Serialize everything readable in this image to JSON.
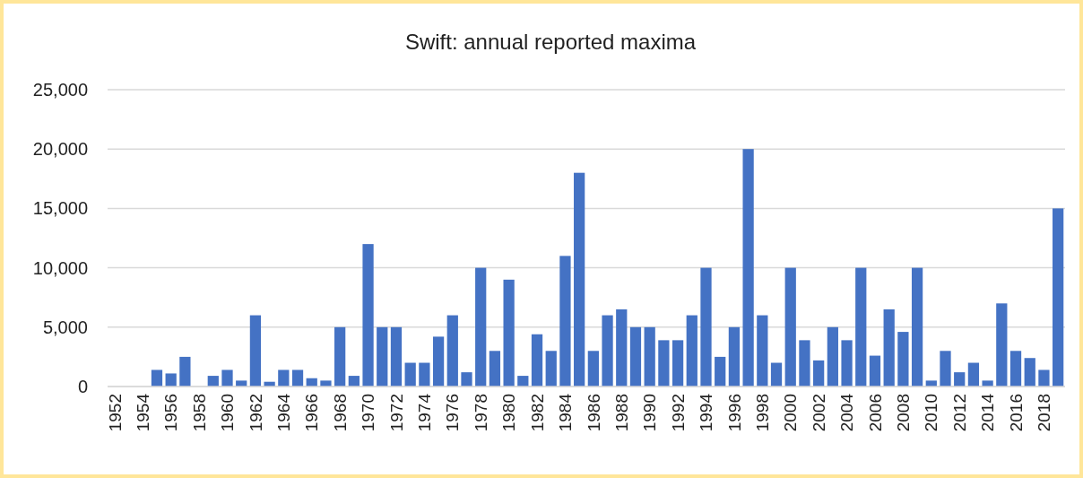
{
  "chart_data": {
    "type": "bar",
    "title": "Swift: annual reported maxima",
    "categories": [
      "1952",
      null,
      "1954",
      null,
      "1956",
      null,
      "1958",
      null,
      "1960",
      null,
      "1962",
      null,
      "1964",
      null,
      "1966",
      null,
      "1968",
      null,
      "1970",
      null,
      "1972",
      null,
      "1974",
      null,
      "1976",
      null,
      "1978",
      null,
      "1980",
      null,
      "1982",
      null,
      "1984",
      null,
      "1986",
      null,
      "1988",
      null,
      "1990",
      null,
      "1992",
      null,
      "1994",
      null,
      "1996",
      null,
      "1998",
      null,
      "2000",
      null,
      "2002",
      null,
      "2004",
      null,
      "2006",
      null,
      "2008",
      null,
      "2010",
      null,
      "2012",
      null,
      "2014",
      null,
      "2016",
      null,
      "2018",
      null
    ],
    "values": [
      0,
      0,
      0,
      1400,
      1100,
      2500,
      0,
      900,
      1400,
      500,
      6000,
      400,
      1400,
      1400,
      700,
      500,
      5000,
      900,
      12000,
      5000,
      5000,
      2000,
      2000,
      4200,
      6000,
      1200,
      10000,
      3000,
      9000,
      900,
      4400,
      3000,
      11000,
      18000,
      3000,
      6000,
      6500,
      5000,
      5000,
      3900,
      3900,
      6000,
      10000,
      2500,
      5000,
      20000,
      6000,
      2000,
      10000,
      3900,
      2200,
      5000,
      3900,
      10000,
      2600,
      6500,
      4600,
      10000,
      500,
      3000,
      1200,
      2000,
      500,
      7000,
      3000,
      2400,
      1400,
      15000
    ],
    "color": "#4472c4",
    "ylim": [
      0,
      25000
    ],
    "yticks": [
      {
        "value": 0,
        "label": "0"
      },
      {
        "value": 5000,
        "label": "5,000"
      },
      {
        "value": 10000,
        "label": "10,000"
      },
      {
        "value": 15000,
        "label": "15,000"
      },
      {
        "value": 20000,
        "label": "20,000"
      },
      {
        "value": 25000,
        "label": "25,000"
      }
    ],
    "grid": "y"
  }
}
